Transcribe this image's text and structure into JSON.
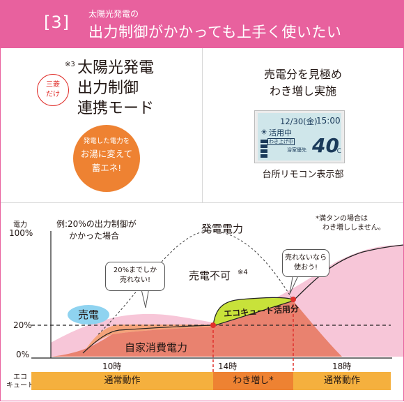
{
  "header": {
    "number": "[3]",
    "subtitle": "太陽光発電の",
    "title": "出力制御がかかっても上手く使いたい"
  },
  "left_panel": {
    "badge_line1": "三菱",
    "badge_line2": "だけ",
    "note_mark": "※3",
    "mode_line1": "太陽光発電",
    "mode_line2": "出力制御",
    "mode_line3": "連携モード",
    "circle_line1": "発電した電力を",
    "circle_line2": "お湯に変えて",
    "circle_line3": "蓄エネ!"
  },
  "right_panel": {
    "title_line1": "売電分を見極め",
    "title_line2": "わき増し実施",
    "remote": {
      "date": "12/30(金)",
      "time": "15:00",
      "status": "活用中",
      "sub1": "わき上げ中",
      "sub2": "浴室優先",
      "temperature": "40",
      "unit": "℃"
    },
    "remote_label": "台所リモコン表示部"
  },
  "chart": {
    "y_title": "電力",
    "y_100": "100%",
    "y_20": "20%",
    "y_0": "0%",
    "example_line1": "例:20%の出力制御が",
    "example_line2": "かかった場合",
    "generation_label": "発電電力",
    "no_sell_label": "売電不可",
    "no_sell_note": "※4",
    "footnote_line1": "*満タンの場合は",
    "footnote_line2": "わき増ししません。",
    "callout_left_line1": "20%までしか",
    "callout_left_line2": "売れない!",
    "callout_right_line1": "売れないなら",
    "callout_right_line2": "使おう!",
    "sell_label": "売電",
    "eco_label": "エコキュート活用分",
    "self_consumption_label": "自家消費電力",
    "x_ticks": [
      "10時",
      "14時",
      "18時"
    ],
    "eco_row_label_line1": "エコ",
    "eco_row_label_line2": "キュート",
    "modes": [
      "通常動作",
      "わき増し*",
      "通常動作"
    ]
  },
  "colors": {
    "brand_pink": "#e8619e",
    "generation_fill": "#f7c6d8",
    "self_consumption_fill": "#e9826f",
    "sell_fill": "#f4a37a",
    "eco_fill": "#c8e23a",
    "mode_normal": "#f5b03e",
    "mode_boost": "#ee8232",
    "marker_red": "#e0302c",
    "sell_bubble": "#8fd3f0"
  }
}
